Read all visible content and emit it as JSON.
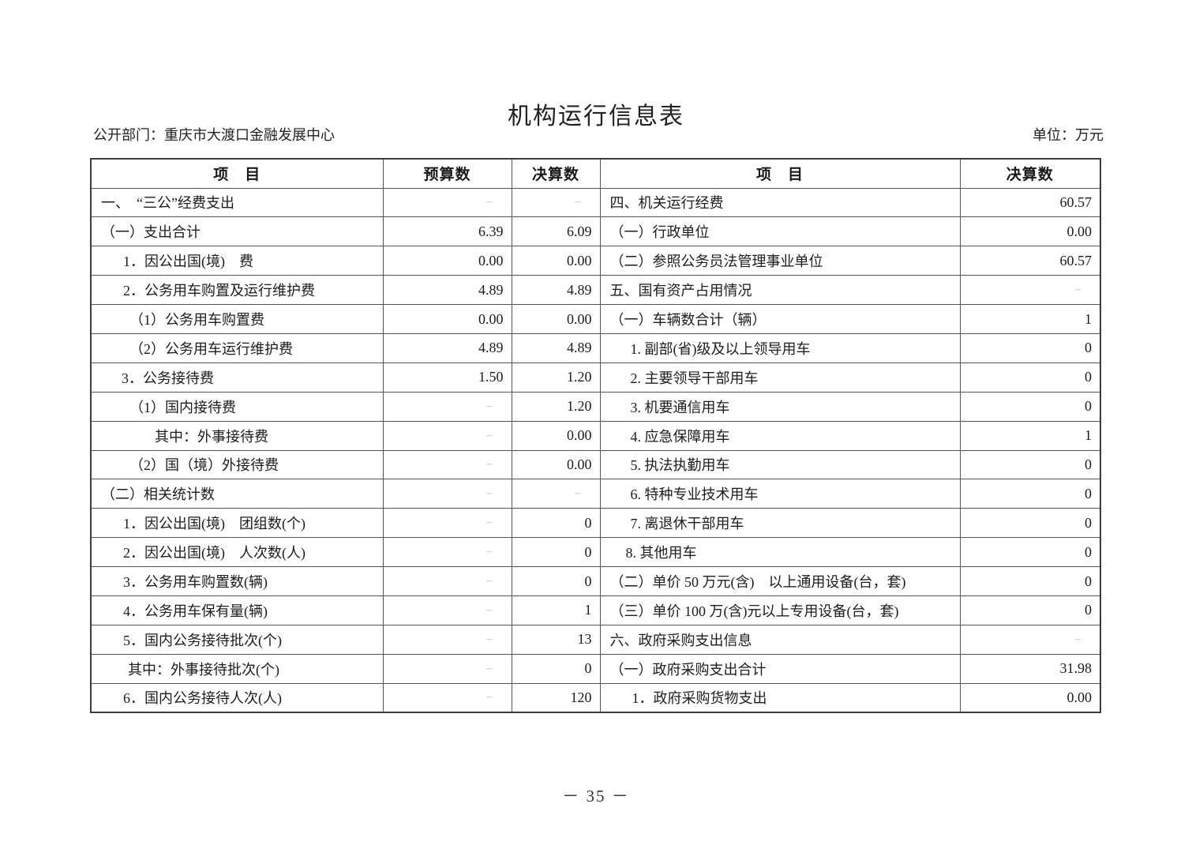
{
  "page": {
    "title": "机构运行信息表",
    "department_label": "公开部门：重庆市大渡口金融发展中心",
    "unit_label": "单位：万元",
    "page_number": "－ 35 －"
  },
  "table": {
    "dash": "–",
    "headers": {
      "item_left": "项　目",
      "budget": "预算数",
      "final_left": "决算数",
      "item_right": "项　目",
      "final_right": "决算数"
    },
    "rows": [
      {
        "left": {
          "label": "一、　“三公”经费支出",
          "indent": 12,
          "budget": "–",
          "final": "–"
        },
        "right": {
          "label": "四、机关运行经费",
          "indent": 12,
          "final": "60.57"
        }
      },
      {
        "left": {
          "label": "（一）支出合计",
          "indent": 12,
          "budget": "6.39",
          "final": "6.09"
        },
        "right": {
          "label": "（一）行政单位",
          "indent": 12,
          "final": "0.00"
        }
      },
      {
        "left": {
          "label": "1．因公出国(境)　费",
          "indent": 40,
          "budget": "0.00",
          "final": "0.00"
        },
        "right": {
          "label": "（二）参照公务员法管理事业单位",
          "indent": 12,
          "final": "60.57"
        }
      },
      {
        "left": {
          "label": "2．公务用车购置及运行维护费",
          "indent": 40,
          "budget": "4.89",
          "final": "4.89"
        },
        "right": {
          "label": "五、国有资产占用情况",
          "indent": 12,
          "final": "–"
        }
      },
      {
        "left": {
          "label": "（1）公务用车购置费",
          "indent": 48,
          "budget": "0.00",
          "final": "0.00"
        },
        "right": {
          "label": "（一）车辆数合计（辆）",
          "indent": 12,
          "final": "1"
        }
      },
      {
        "left": {
          "label": "（2）公务用车运行维护费",
          "indent": 48,
          "budget": "4.89",
          "final": "4.89"
        },
        "right": {
          "label": "1. 副部(省)级及以上领导用车",
          "indent": 38,
          "final": "0"
        }
      },
      {
        "left": {
          "label": "3．公务接待费",
          "indent": 38,
          "budget": "1.50",
          "final": "1.20"
        },
        "right": {
          "label": "2. 主要领导干部用车",
          "indent": 38,
          "final": "0"
        }
      },
      {
        "left": {
          "label": "（1）国内接待费",
          "indent": 48,
          "budget": "–",
          "final": "1.20"
        },
        "right": {
          "label": "3. 机要通信用车",
          "indent": 38,
          "final": "0"
        }
      },
      {
        "left": {
          "label": "其中：外事接待费",
          "indent": 80,
          "budget": "–",
          "final": "0.00"
        },
        "right": {
          "label": "4. 应急保障用车",
          "indent": 38,
          "final": "1"
        }
      },
      {
        "left": {
          "label": "（2）国（境）外接待费",
          "indent": 48,
          "budget": "–",
          "final": "0.00"
        },
        "right": {
          "label": "5. 执法执勤用车",
          "indent": 38,
          "final": "0"
        }
      },
      {
        "left": {
          "label": "（二）相关统计数",
          "indent": 12,
          "budget": "–",
          "final": "–"
        },
        "right": {
          "label": "6. 特种专业技术用车",
          "indent": 38,
          "final": "0"
        }
      },
      {
        "left": {
          "label": "1．因公出国(境)　团组数(个)",
          "indent": 40,
          "budget": "–",
          "final": "0"
        },
        "right": {
          "label": "7. 离退休干部用车",
          "indent": 38,
          "final": "0"
        }
      },
      {
        "left": {
          "label": "2．因公出国(境)　人次数(人)",
          "indent": 40,
          "budget": "–",
          "final": "0"
        },
        "right": {
          "label": "8. 其他用车",
          "indent": 32,
          "final": "0"
        }
      },
      {
        "left": {
          "label": "3．公务用车购置数(辆)",
          "indent": 40,
          "budget": "–",
          "final": "0"
        },
        "right": {
          "label": "（二）单价 50 万元(含)　以上通用设备(台，套)",
          "indent": 12,
          "final": "0"
        }
      },
      {
        "left": {
          "label": "4．公务用车保有量(辆)",
          "indent": 40,
          "budget": "–",
          "final": "1"
        },
        "right": {
          "label": "（三）单价 100 万(含)元以上专用设备(台，套)",
          "indent": 12,
          "final": "0"
        }
      },
      {
        "left": {
          "label": "5．国内公务接待批次(个)",
          "indent": 40,
          "budget": "–",
          "final": "13"
        },
        "right": {
          "label": "六、政府采购支出信息",
          "indent": 12,
          "final": "–"
        }
      },
      {
        "left": {
          "label": "其中：外事接待批次(个)",
          "indent": 46,
          "budget": "–",
          "final": "0"
        },
        "right": {
          "label": "（一）政府采购支出合计",
          "indent": 12,
          "final": "31.98"
        }
      },
      {
        "left": {
          "label": "6．国内公务接待人次(人)",
          "indent": 40,
          "budget": "–",
          "final": "120"
        },
        "right": {
          "label": "1．政府采购货物支出",
          "indent": 40,
          "final": "0.00"
        }
      }
    ]
  },
  "colors": {
    "border": "#555555",
    "outer_border": "#3c3c3c",
    "text": "#1d1d1d",
    "dash": "#b2b2b2"
  }
}
